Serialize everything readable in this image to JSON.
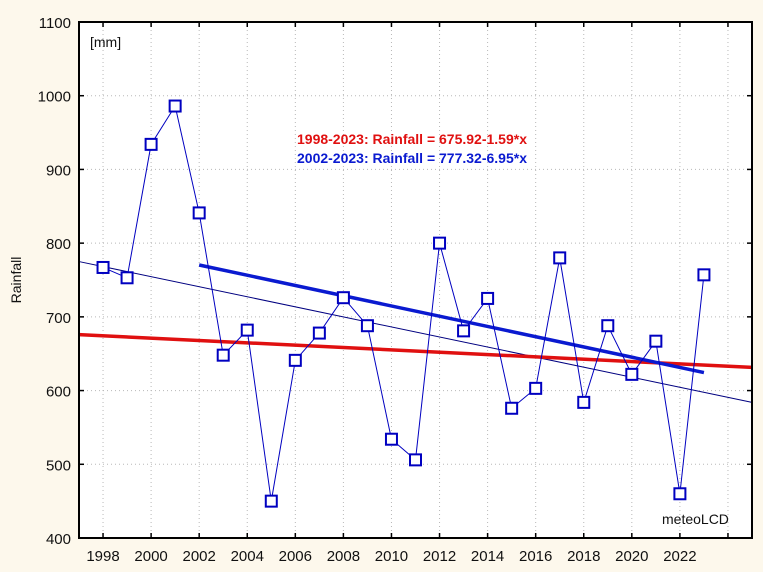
{
  "chart_data": {
    "type": "line",
    "title": "",
    "xlabel": "",
    "ylabel": "Rainfall",
    "unit_label": "[mm]",
    "source_label": "meteoLCD",
    "xlim": [
      1997,
      2025
    ],
    "ylim": [
      400,
      1100
    ],
    "grid": true,
    "x_ticks": [
      1998,
      2000,
      2002,
      2004,
      2006,
      2008,
      2010,
      2012,
      2014,
      2016,
      2018,
      2020,
      2022,
      2024
    ],
    "x_tick_labels": [
      "1998",
      "2000",
      "2002",
      "2004",
      "2006",
      "2008",
      "2010",
      "2012",
      "2014",
      "2016",
      "2018",
      "2020",
      "2022",
      ""
    ],
    "y_ticks": [
      400,
      500,
      600,
      700,
      800,
      900,
      1000,
      1100
    ],
    "y_tick_labels": [
      "400",
      "500",
      "600",
      "700",
      "800",
      "900",
      "1000",
      "1100"
    ],
    "series": [
      {
        "name": "Rainfall",
        "color": "#0000c0",
        "marker": "square",
        "x": [
          1998,
          1999,
          2000,
          2001,
          2002,
          2003,
          2004,
          2005,
          2006,
          2007,
          2008,
          2009,
          2010,
          2011,
          2012,
          2013,
          2014,
          2015,
          2016,
          2017,
          2018,
          2019,
          2020,
          2021,
          2022,
          2023
        ],
        "values": [
          767,
          753,
          934,
          986,
          841,
          648,
          682,
          450,
          641,
          678,
          726,
          688,
          534,
          506,
          800,
          681,
          725,
          576,
          603,
          780,
          584,
          688,
          622,
          667,
          460,
          757
        ]
      }
    ],
    "trendlines": [
      {
        "name": "1998-2023",
        "label": "1998-2023: Rainfall = 675.92-1.59*x",
        "color": "#e01010",
        "intercept": 675.92,
        "slope": -1.59,
        "x_origin": 1997,
        "x_range": [
          1997,
          2025
        ]
      },
      {
        "name": "2002-2023",
        "label": "2002-2023: Rainfall = 777.32-6.95*x",
        "color": "#0a1ad0",
        "intercept": 777.32,
        "slope": -6.95,
        "x_origin": 2001,
        "x_range": [
          2002,
          2023
        ]
      },
      {
        "name": "overall-linear-fit",
        "label": "",
        "color": "#000080",
        "from": [
          1997,
          775
        ],
        "to": [
          2025,
          584
        ]
      }
    ]
  }
}
